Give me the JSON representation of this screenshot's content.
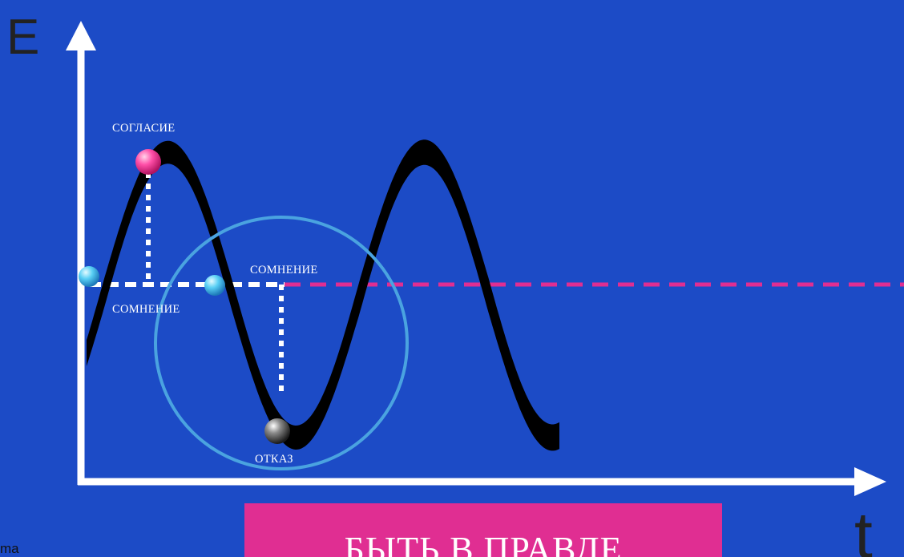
{
  "axes": {
    "y_label": "E",
    "x_label": "t"
  },
  "states": {
    "agree": "СОГЛАСИЕ",
    "doubt_left": "СОМНЕНИЕ",
    "doubt_right": "СОМНЕНИЕ",
    "refuse": "ОТКАЗ"
  },
  "banner_text": "БЫТЬ В ПРАВДЕ",
  "corner_text": "ma",
  "colors": {
    "background": "#1c4bc6",
    "wave": "#000000",
    "axis": "#ffffff",
    "baseline_dashes": "#e02e92",
    "circle": "#4aa3e0",
    "banner": "#e02e92",
    "ball_agree": "#ff4fa8",
    "ball_doubt": "#5ad0f5",
    "ball_refuse": "#6a6a6a"
  }
}
